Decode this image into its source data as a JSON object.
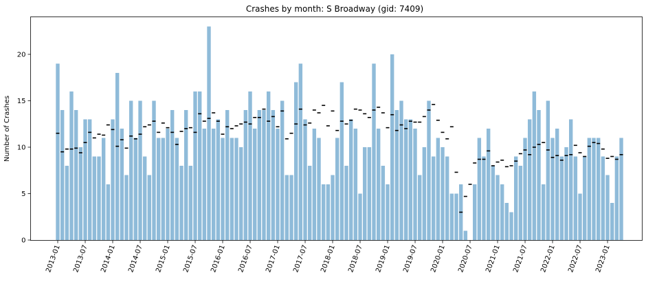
{
  "chart_data": {
    "type": "bar",
    "title": "Crashes by month: S Broadway (gid: 7409)",
    "xlabel": "",
    "ylabel": "Number of Crashes",
    "ylim": [
      0,
      24
    ],
    "yticks": [
      0,
      5,
      10,
      15,
      20
    ],
    "start_month": "2013-01",
    "xtick_labels": [
      "2013-01",
      "2013-07",
      "2014-01",
      "2014-07",
      "2015-01",
      "2015-07",
      "2016-01",
      "2016-07",
      "2017-01",
      "2017-07",
      "2018-01",
      "2018-07",
      "2019-01",
      "2019-07",
      "2020-01",
      "2020-07",
      "2021-01",
      "2021-07",
      "2022-01",
      "2022-07",
      "2023-01"
    ],
    "bar_color": "#8fbbd9",
    "marker_color": "#000000",
    "series": [
      {
        "values": [
          19,
          14,
          8,
          16,
          14,
          10,
          13,
          13,
          9,
          9,
          11,
          6,
          13,
          18,
          12,
          7,
          15,
          11,
          15,
          9,
          7,
          15,
          11,
          11,
          12,
          14,
          11,
          8,
          14,
          8,
          16,
          16,
          12,
          23,
          12,
          13,
          11,
          14,
          11,
          11,
          10,
          14,
          16,
          12,
          14,
          14,
          16,
          14,
          12,
          15,
          7,
          7,
          17,
          19,
          13,
          8,
          12,
          11,
          6,
          6,
          7,
          11,
          17,
          8,
          13,
          12,
          5,
          10,
          10,
          19,
          12,
          8,
          6,
          20,
          14,
          15,
          13,
          13,
          12,
          7,
          10,
          15,
          9,
          11,
          10,
          9,
          5,
          5,
          6,
          1,
          0,
          6,
          11,
          9,
          12,
          8,
          7,
          6,
          4,
          3,
          9,
          8,
          11,
          13,
          16,
          14,
          6,
          15,
          11,
          12,
          9,
          10,
          13,
          9,
          5,
          9,
          11,
          11,
          11,
          9,
          7,
          4,
          9,
          11
        ]
      },
      {
        "values": [
          11.5,
          9.5,
          9.8,
          9.8,
          9.9,
          9.4,
          10.5,
          11.6,
          11.0,
          11.4,
          11.3,
          12.4,
          11.9,
          10.1,
          10.8,
          9.9,
          11.2,
          10.9,
          11.4,
          12.2,
          12.4,
          12.8,
          11.6,
          12.6,
          12.1,
          11.6,
          10.3,
          11.7,
          12.0,
          12.1,
          11.6,
          13.6,
          12.8,
          13.1,
          13.7,
          12.8,
          11.4,
          12.2,
          12.0,
          12.3,
          12.5,
          12.7,
          12.5,
          13.2,
          13.2,
          14.1,
          12.8,
          13.3,
          12.2,
          13.9,
          10.9,
          11.5,
          12.5,
          14.1,
          12.4,
          12.6,
          14.0,
          13.7,
          14.5,
          12.3,
          13.9,
          11.8,
          12.8,
          12.5,
          12.9,
          14.1,
          14.0,
          13.6,
          13.2,
          14.0,
          14.3,
          13.7,
          12.1,
          13.5,
          11.8,
          12.4,
          12.0,
          12.8,
          12.7,
          12.7,
          13.3,
          14.0,
          14.6,
          12.9,
          11.6,
          10.9,
          12.2,
          7.3,
          3.0,
          4.7,
          6.0,
          8.3,
          8.7,
          8.7,
          9.6,
          8.0,
          8.4,
          8.6,
          7.9,
          8.0,
          8.5,
          9.3,
          9.7,
          9.2,
          10.0,
          10.3,
          10.5,
          9.7,
          8.9,
          9.1,
          8.6,
          9.1,
          9.2,
          10.2,
          9.4,
          9.0,
          10.1,
          10.5,
          10.4,
          9.8,
          8.8,
          9.0,
          8.7,
          9.2
        ]
      }
    ]
  }
}
